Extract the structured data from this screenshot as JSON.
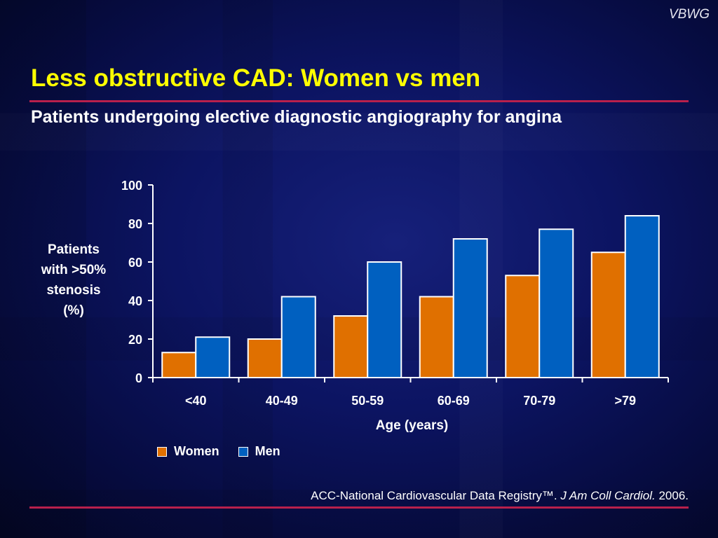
{
  "brand": "VBWG",
  "title": "Less obstructive CAD: Women vs men",
  "subtitle": "Patients undergoing elective diagnostic angiography for angina",
  "colors": {
    "women": "#e07000",
    "men": "#0060c0",
    "title": "#ffff00",
    "rule": "#b8204c"
  },
  "chart_data": {
    "type": "bar",
    "categories": [
      "<40",
      "40-49",
      "50-59",
      "60-69",
      "70-79",
      ">79"
    ],
    "series": [
      {
        "name": "Women",
        "values": [
          13,
          20,
          32,
          42,
          53,
          65
        ]
      },
      {
        "name": "Men",
        "values": [
          21,
          42,
          60,
          72,
          77,
          84
        ]
      }
    ],
    "yticks": [
      "0",
      "20",
      "40",
      "60",
      "80",
      "100"
    ],
    "ylim": [
      0,
      100
    ],
    "xlabel": "Age (years)",
    "ylabel": "Patients\nwith >50%\nstenosis\n(%)",
    "grid": false,
    "legend_position": "bottom-left"
  },
  "source": {
    "prefix": "ACC-National Cardiovascular Data Registry™. ",
    "journal": "J Am Coll Cardiol.",
    "year": " 2006."
  }
}
